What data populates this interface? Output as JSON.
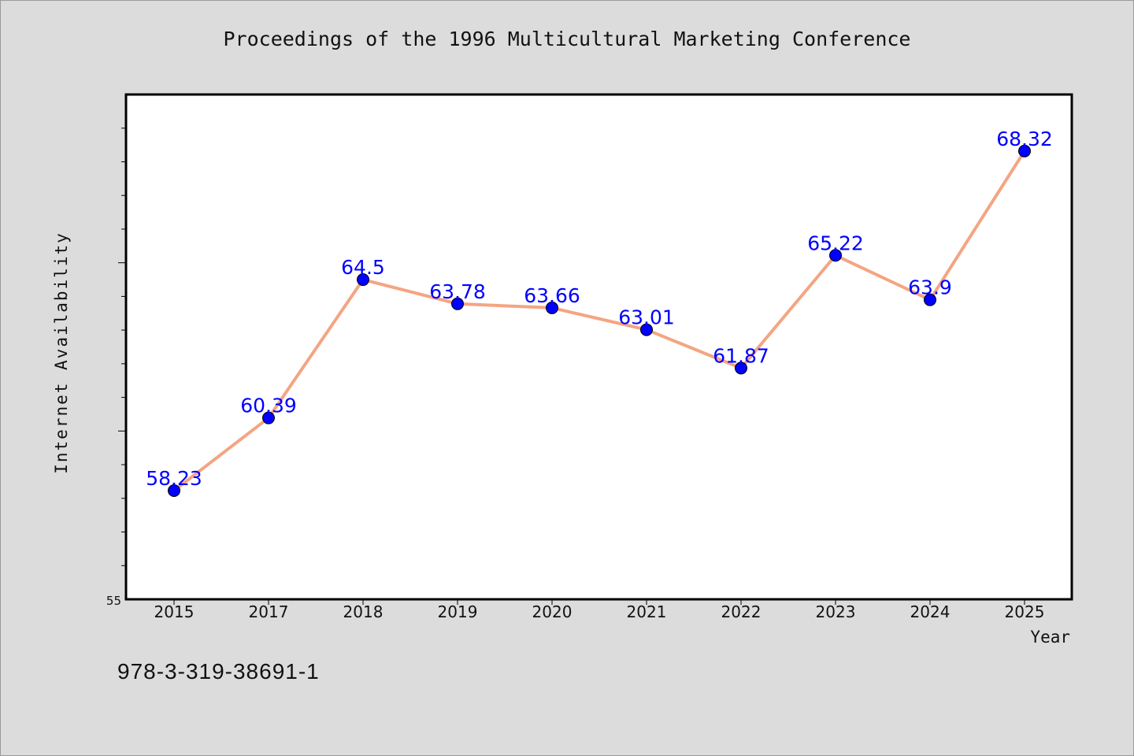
{
  "chart_data": {
    "type": "line",
    "title": "Proceedings of the 1996 Multicultural Marketing Conference",
    "xlabel": "Year",
    "ylabel": "Internet Availability",
    "categories": [
      "2015",
      "2017",
      "2018",
      "2019",
      "2020",
      "2021",
      "2022",
      "2023",
      "2024",
      "2025"
    ],
    "series": [
      {
        "values": [
          58.23,
          60.39,
          64.5,
          63.78,
          63.66,
          63.01,
          61.87,
          65.22,
          63.9,
          68.32
        ],
        "labels": [
          "58.23",
          "60.39",
          "64.5",
          "63.78",
          "63.66",
          "63.01",
          "61.87",
          "65.22",
          "63.9",
          "68.32"
        ]
      }
    ],
    "ylim": [
      55,
      70
    ],
    "y_min_label": "55",
    "y_minor_step": 1,
    "y_major_step": 5,
    "grid": false,
    "line_color": "#f4a582",
    "marker_color": "#0000ff",
    "label_color": "#0000ff"
  },
  "footer": {
    "isbn": "978-3-319-38691-1"
  },
  "colors": {
    "background": "#dcdcdc",
    "plot_background": "#ffffff",
    "axis": "#000000"
  }
}
